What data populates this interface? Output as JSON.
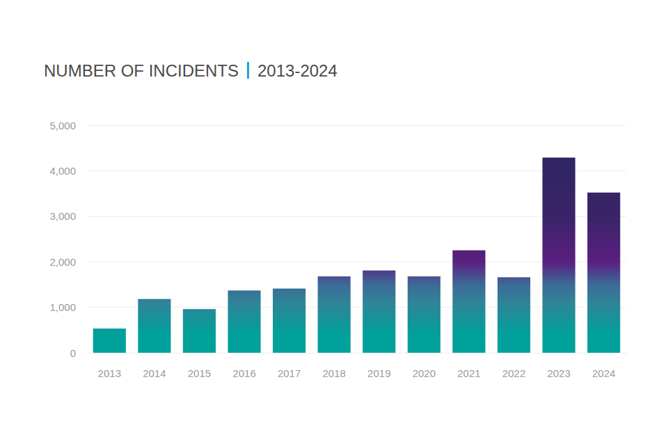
{
  "chart_data": {
    "type": "bar",
    "title": "NUMBER OF INCIDENTS",
    "subtitle": "2013-2024",
    "categories": [
      "2013",
      "2014",
      "2015",
      "2016",
      "2017",
      "2018",
      "2019",
      "2020",
      "2021",
      "2022",
      "2023",
      "2024"
    ],
    "values": [
      530,
      1180,
      960,
      1370,
      1410,
      1680,
      1810,
      1680,
      2250,
      1660,
      4290,
      3520
    ],
    "color": "#00a19a",
    "ylim": [
      0,
      5000
    ],
    "yticks": [
      0,
      {
        "value": 1000,
        "label": "1,000"
      },
      {
        "value": 2000,
        "label": "2,000"
      },
      {
        "value": 3000,
        "label": "3,000"
      },
      {
        "value": 4000,
        "label": "4,000"
      },
      {
        "value": 5000,
        "label": "5,000"
      }
    ],
    "grid": true
  }
}
